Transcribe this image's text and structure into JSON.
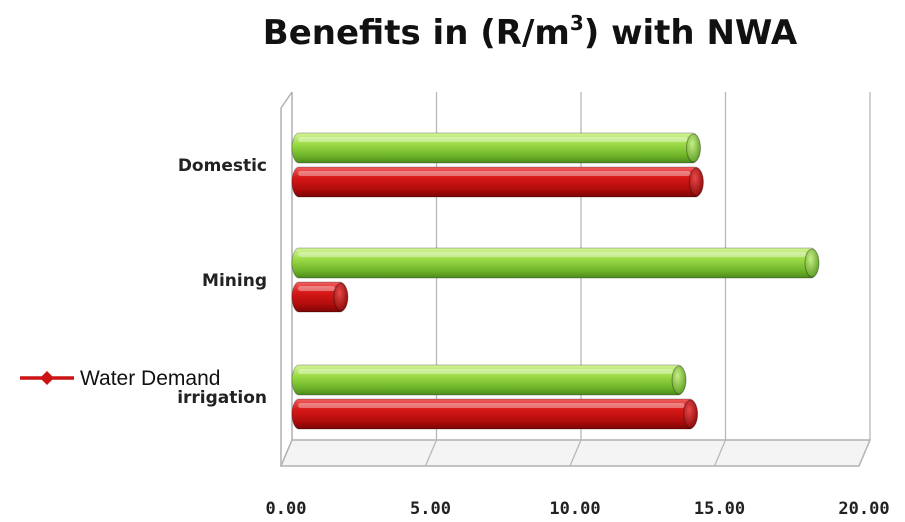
{
  "chart_data": {
    "type": "bar",
    "orientation": "horizontal",
    "title_prefix": "Benefits in (R/m",
    "title_sup": "3",
    "title_suffix": ") with NWA",
    "categories": [
      "Domestic",
      "Mining",
      "irrigation"
    ],
    "series": [
      {
        "values": [
          14.1,
          18.2,
          13.6
        ],
        "color": "#8fcf3c"
      },
      {
        "name": "Water Demand",
        "values": [
          14.2,
          1.9,
          14.0
        ],
        "color": "#cc1414"
      }
    ],
    "xlim": [
      0,
      20
    ],
    "xticks": [
      "0.00",
      "5.00",
      "10.00",
      "15.00",
      "20.00"
    ],
    "grid": true,
    "legend_position": "left"
  }
}
